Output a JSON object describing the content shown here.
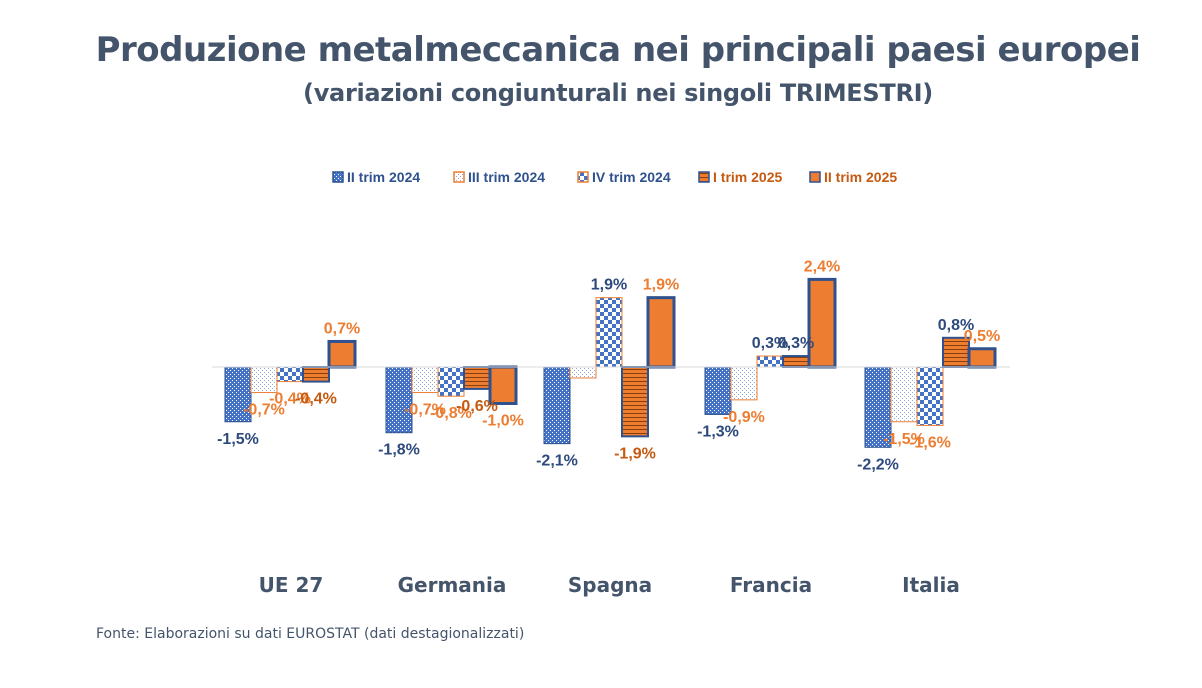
{
  "colors": {
    "blue": "#4472c4",
    "dark_blue": "#2f528f",
    "navy_text": "#2e4a7d",
    "orange": "#ed7d31",
    "orange_dark": "#c55a11",
    "axis": "#d9d9d9",
    "text": "#44546a"
  },
  "chart_data": {
    "type": "bar",
    "title": "Produzione metalmeccanica nei principali paesi europei",
    "subtitle": "(variazioni congiunturali nei singoli TRIMESTRI)",
    "legend_position": "top",
    "grid": false,
    "categories": [
      "UE 27",
      "Germania",
      "Spagna",
      "Francia",
      "Italia"
    ],
    "series": [
      {
        "name": "II trim 2024",
        "values": [
          -1.5,
          -1.8,
          -2.1,
          -1.3,
          -2.2
        ],
        "labels": [
          "-1,5%",
          "-1,8%",
          "-2,1%",
          "-1,3%",
          "-2,2%"
        ]
      },
      {
        "name": "III trim 2024",
        "values": [
          -0.7,
          -0.7,
          -0.3,
          -0.9,
          -1.5
        ],
        "labels": [
          "-0,7%",
          "-0,7%",
          "",
          "-0,9%",
          "-1,5%"
        ]
      },
      {
        "name": "IV trim 2024",
        "values": [
          -0.4,
          -0.8,
          1.9,
          0.3,
          -1.6
        ],
        "labels": [
          "-0,4%",
          "-0,8%",
          "1,9%",
          "0,3%",
          "-1,6%"
        ]
      },
      {
        "name": "I trim 2025",
        "values": [
          -0.4,
          -0.6,
          -1.9,
          0.3,
          0.8
        ],
        "labels": [
          "-0,4%",
          "-0,6%",
          "-1,9%",
          "0,3%",
          "0,8%"
        ]
      },
      {
        "name": "II trim 2025",
        "values": [
          0.7,
          -1.0,
          1.9,
          2.4,
          0.5
        ],
        "labels": [
          "0,7%",
          "-1,0%",
          "1,9%",
          "2,4%",
          "0,5%"
        ]
      }
    ]
  },
  "source": "Fonte: Elaborazioni su dati EUROSTAT (dati destagionalizzati)"
}
